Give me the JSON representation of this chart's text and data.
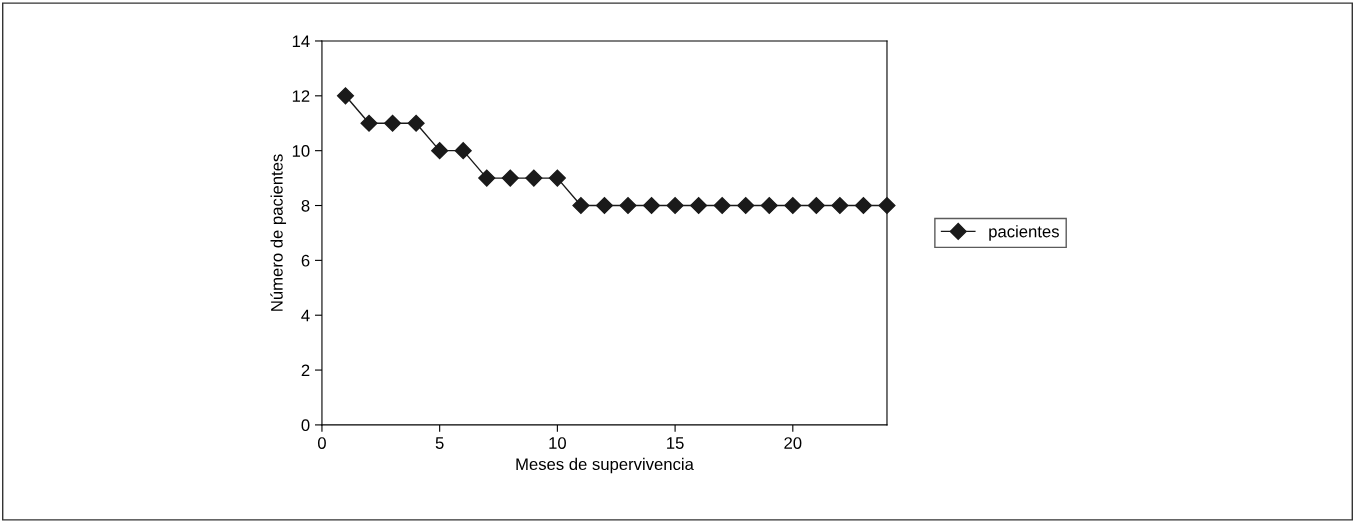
{
  "chart_data": {
    "type": "line",
    "xlabel": "Meses de supervivencia",
    "ylabel": "Número de pacientes",
    "x": [
      1,
      2,
      3,
      4,
      5,
      6,
      7,
      8,
      9,
      10,
      11,
      12,
      13,
      14,
      15,
      16,
      17,
      18,
      19,
      20,
      21,
      22,
      23,
      24
    ],
    "series": [
      {
        "name": "pacientes",
        "color": "#1a1a1a",
        "values": [
          12,
          11,
          11,
          11,
          10,
          10,
          9,
          9,
          9,
          9,
          8,
          8,
          8,
          8,
          8,
          8,
          8,
          8,
          8,
          8,
          8,
          8,
          8,
          8
        ]
      }
    ],
    "xlim": [
      0,
      24
    ],
    "xticks": [
      0,
      5,
      10,
      15,
      20
    ],
    "ylim": [
      0,
      14
    ],
    "yticks": [
      0,
      2,
      4,
      6,
      8,
      10,
      12,
      14
    ],
    "marker": "diamond",
    "line_style": "solid",
    "grid": false,
    "legend": "right"
  }
}
